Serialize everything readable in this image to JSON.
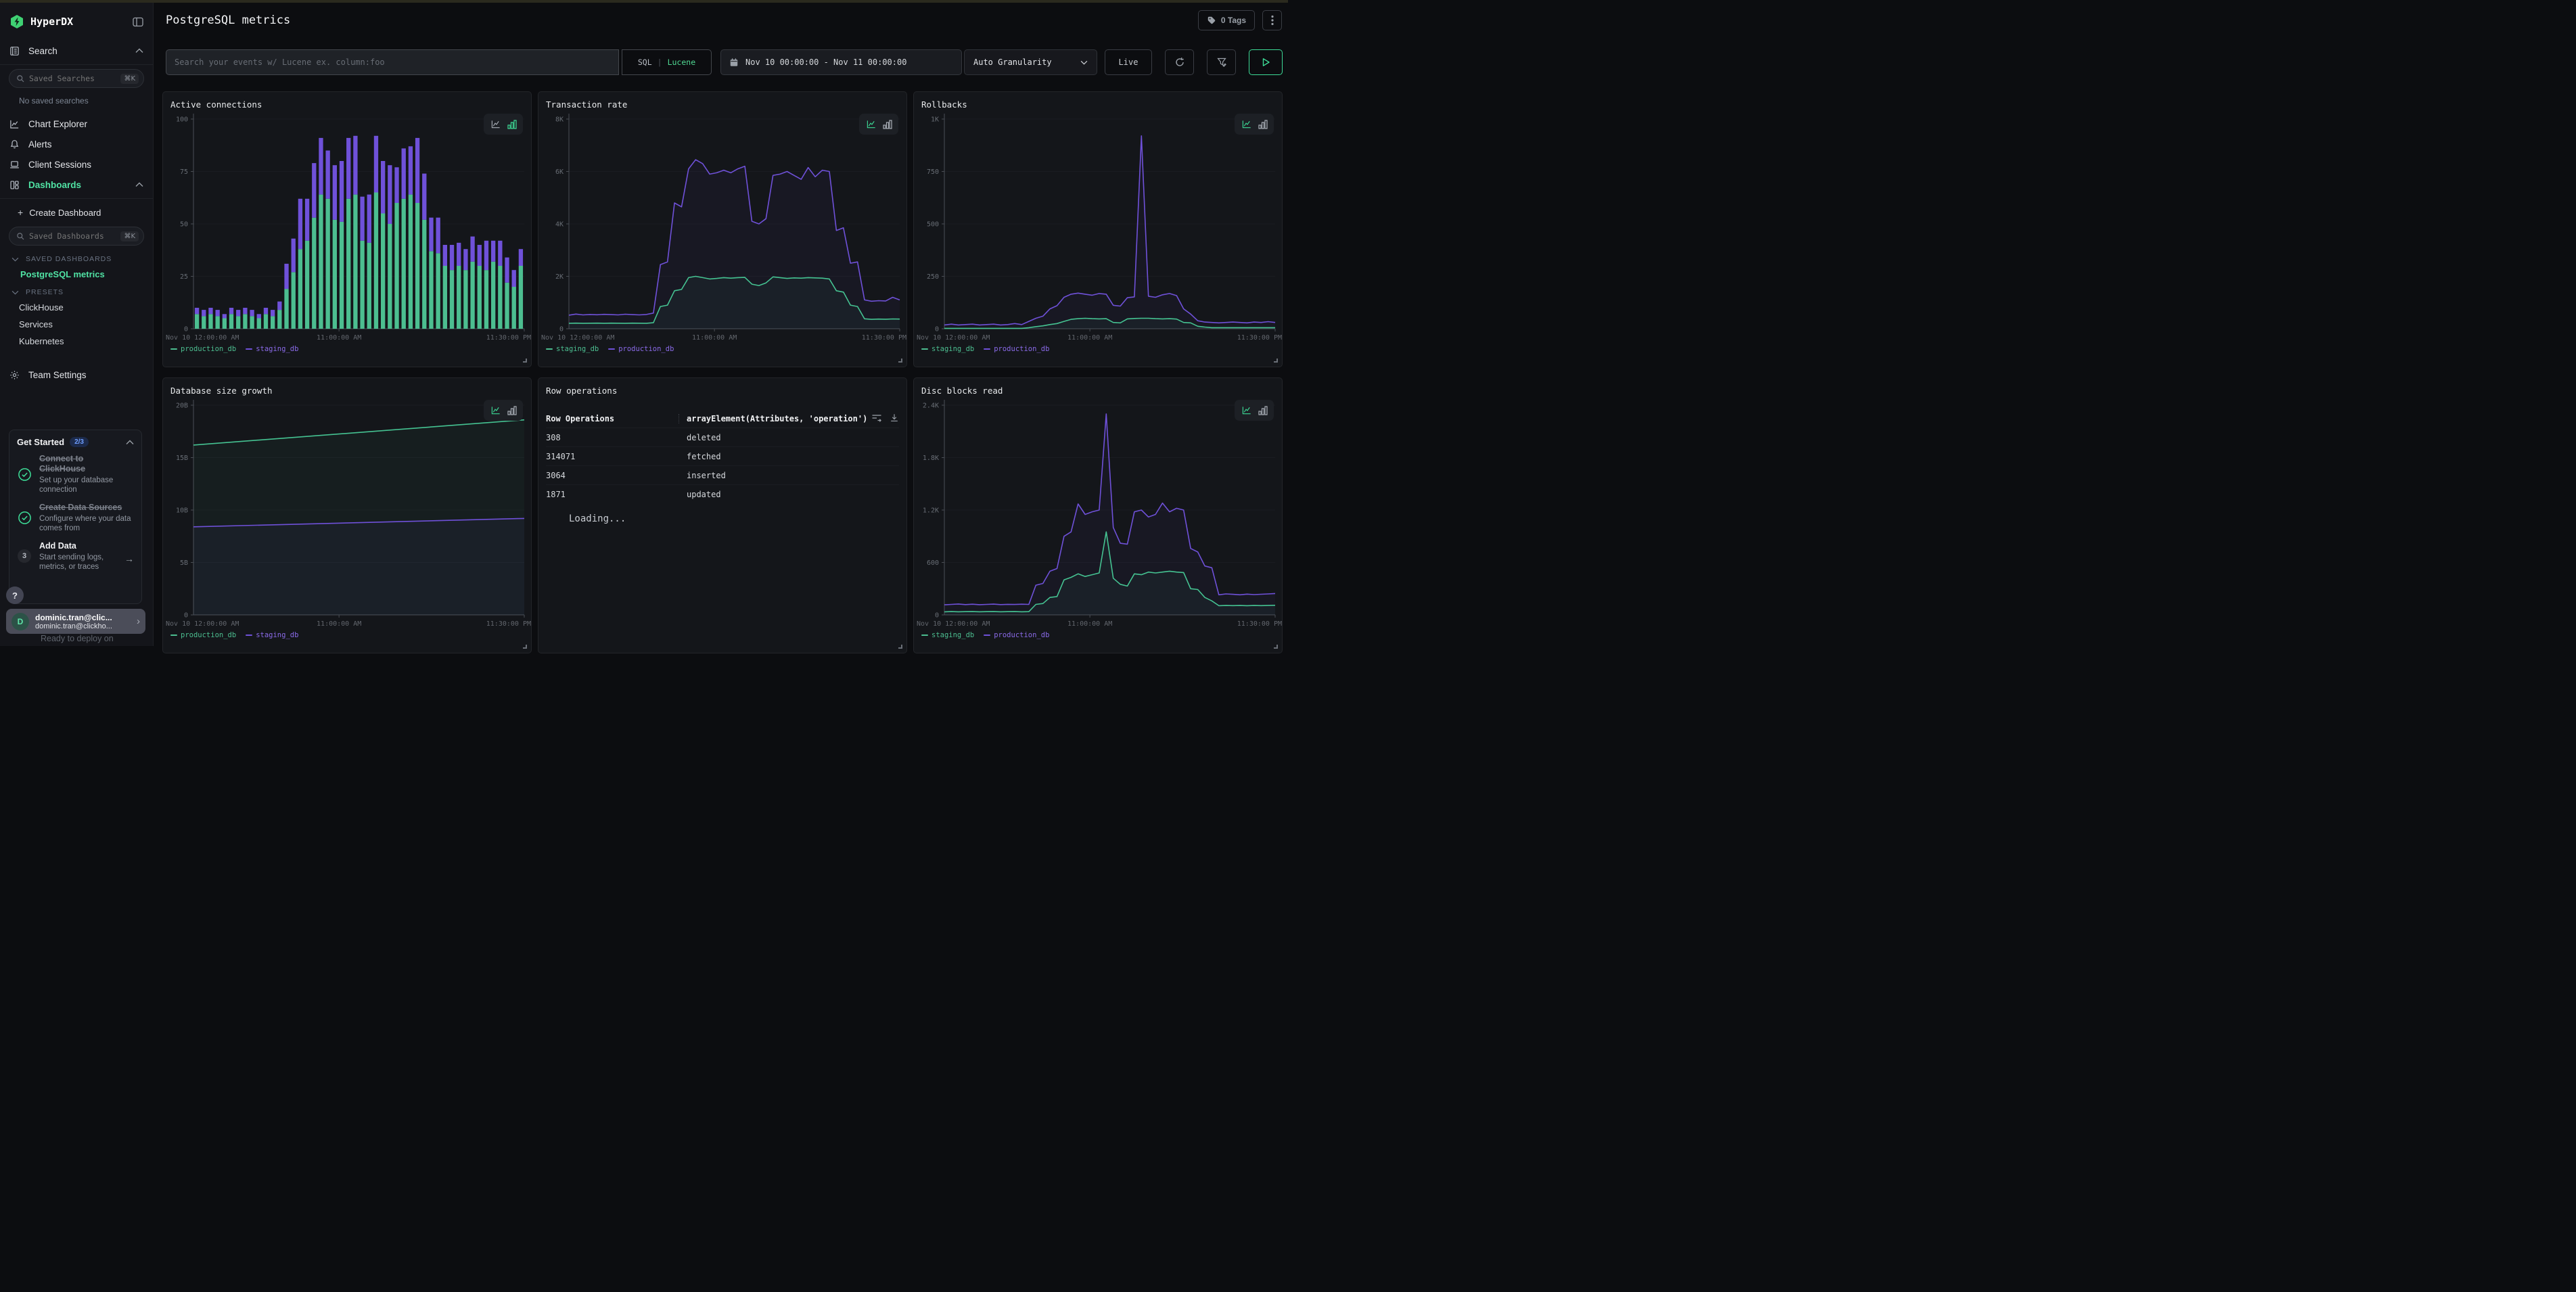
{
  "app": {
    "brand": "HyperDX"
  },
  "sidebar": {
    "search_section_label": "Search",
    "saved_searches": {
      "placeholder": "Saved Searches",
      "shortcut": "⌘K"
    },
    "no_saved_searches": "No saved searches",
    "nav": {
      "chart_explorer": "Chart Explorer",
      "alerts": "Alerts",
      "client_sessions": "Client Sessions",
      "dashboards": "Dashboards"
    },
    "create_dashboard": "Create Dashboard",
    "saved_dashboards_input": {
      "placeholder": "Saved Dashboards",
      "shortcut": "⌘K"
    },
    "saved_dashboards_header": "SAVED DASHBOARDS",
    "saved_dashboard_items": [
      "PostgreSQL metrics"
    ],
    "presets_header": "PRESETS",
    "preset_items": [
      "ClickHouse",
      "Services",
      "Kubernetes"
    ],
    "team_settings": "Team Settings",
    "get_started": {
      "title": "Get Started",
      "badge": "2/3",
      "items": [
        {
          "title": "Connect to ClickHouse",
          "subtitle": "Set up your database connection",
          "done": true
        },
        {
          "title": "Create Data Sources",
          "subtitle": "Configure where your data comes from",
          "done": true
        },
        {
          "step": "3",
          "title": "Add Data",
          "subtitle": "Start sending logs, metrics, or traces",
          "done": false
        }
      ],
      "teaser": "Ready to deploy on"
    },
    "help_label": "?",
    "user": {
      "avatar_initial": "D",
      "name": "dominic.tran@clic...",
      "email": "dominic.tran@clickho..."
    }
  },
  "header": {
    "title": "PostgreSQL metrics",
    "tags_label": "0 Tags"
  },
  "toolbar": {
    "search_placeholder": "Search your events w/ Lucene ex. column:foo",
    "sql_label": "SQL",
    "lucene_label": "Lucene",
    "time_range": "Nov 10 00:00:00 - Nov 11 00:00:00",
    "granularity": "Auto Granularity",
    "live_label": "Live"
  },
  "colors": {
    "accent_green": "#50e3a4",
    "series_green": "#4cbe90",
    "series_purple": "#6f51d9"
  },
  "chart_data": [
    {
      "type": "bar",
      "stacked": true,
      "title": "Active connections",
      "ylim": [
        0,
        100
      ],
      "yticks": [
        "0",
        "25",
        "50",
        "75",
        "100"
      ],
      "xticks": [
        "Nov 10 12:00:00 AM",
        "11:00:00 AM",
        "11:30:00 PM"
      ],
      "legend": [
        {
          "label": "production_db"
        },
        {
          "label": "staging_db"
        }
      ],
      "active_view": "bar",
      "series": [
        {
          "name": "production_db",
          "color": "#4cbe90",
          "values": [
            7,
            6,
            7,
            6,
            5,
            7,
            6,
            7,
            6,
            5,
            7,
            6,
            9,
            19,
            27,
            38,
            42,
            53,
            64,
            62,
            52,
            51,
            62,
            64,
            42,
            41,
            65,
            55,
            50,
            60,
            62,
            64,
            60,
            52,
            37,
            36,
            30,
            28,
            30,
            28,
            32,
            30,
            28,
            32,
            30,
            22,
            20,
            30
          ]
        },
        {
          "name": "staging_db",
          "color": "#6f51d9",
          "values": [
            3,
            3,
            3,
            3,
            2,
            3,
            3,
            3,
            3,
            2,
            3,
            3,
            4,
            12,
            16,
            24,
            20,
            26,
            27,
            23,
            26,
            29,
            29,
            28,
            21,
            23,
            27,
            25,
            28,
            17,
            24,
            23,
            31,
            22,
            16,
            17,
            10,
            12,
            11,
            10,
            12,
            10,
            14,
            10,
            12,
            12,
            8,
            8
          ]
        }
      ]
    },
    {
      "type": "line",
      "title": "Transaction rate",
      "ylim": [
        0,
        8000
      ],
      "yticks": [
        "0",
        "2K",
        "4K",
        "6K",
        "8K"
      ],
      "xticks": [
        "Nov 10 12:00:00 AM",
        "11:00:00 AM",
        "11:30:00 PM"
      ],
      "legend": [
        {
          "label": "staging_db"
        },
        {
          "label": "production_db"
        }
      ],
      "active_view": "line",
      "series": [
        {
          "name": "production_db",
          "color": "#6f51d9",
          "values": [
            520,
            560,
            530,
            545,
            535,
            550,
            540,
            530,
            555,
            540,
            530,
            545,
            600,
            2450,
            2550,
            4800,
            4650,
            6100,
            6450,
            6300,
            5900,
            5950,
            6050,
            5950,
            6100,
            6200,
            4100,
            4000,
            4200,
            5850,
            5900,
            6000,
            5850,
            5700,
            6150,
            5800,
            6050,
            6000,
            3750,
            3850,
            2500,
            2550,
            1100,
            1050,
            1070,
            1060,
            1200,
            1100
          ]
        },
        {
          "name": "staging_db",
          "color": "#45c392",
          "values": [
            210,
            215,
            210,
            212,
            215,
            210,
            214,
            212,
            210,
            215,
            212,
            210,
            230,
            850,
            900,
            1450,
            1500,
            1950,
            2000,
            1950,
            1900,
            1920,
            1950,
            1930,
            1950,
            1960,
            1700,
            1650,
            1750,
            1980,
            1950,
            1920,
            1940,
            1930,
            1950,
            1940,
            1930,
            1900,
            1450,
            1400,
            900,
            850,
            380,
            360,
            370,
            365,
            375,
            370
          ]
        }
      ]
    },
    {
      "type": "line",
      "title": "Rollbacks",
      "ylim": [
        0,
        1000
      ],
      "yticks": [
        "0",
        "250",
        "500",
        "750",
        "1K"
      ],
      "xticks": [
        "Nov 10 12:00:00 AM",
        "11:00:00 AM",
        "11:30:00 PM"
      ],
      "legend": [
        {
          "label": "staging_db"
        },
        {
          "label": "production_db"
        }
      ],
      "active_view": "line",
      "series": [
        {
          "name": "production_db",
          "color": "#6f51d9",
          "values": [
            18,
            22,
            18,
            20,
            22,
            18,
            20,
            22,
            18,
            20,
            25,
            20,
            35,
            50,
            60,
            95,
            110,
            150,
            165,
            170,
            165,
            160,
            168,
            165,
            112,
            108,
            148,
            152,
            920,
            155,
            150,
            162,
            168,
            158,
            95,
            70,
            38,
            32,
            30,
            28,
            30,
            32,
            30,
            28,
            32,
            30,
            34,
            30
          ]
        },
        {
          "name": "staging_db",
          "color": "#45c392",
          "values": [
            2,
            2,
            2,
            2,
            2,
            2,
            2,
            2,
            2,
            2,
            2,
            2,
            5,
            10,
            14,
            20,
            25,
            35,
            45,
            48,
            50,
            48,
            47,
            48,
            30,
            28,
            47,
            49,
            50,
            50,
            48,
            47,
            48,
            46,
            30,
            28,
            12,
            8,
            5,
            5,
            5,
            5,
            5,
            5,
            5,
            5,
            5,
            5
          ]
        }
      ]
    },
    {
      "type": "line",
      "title": "Database size growth",
      "ylim": [
        0,
        20000000000
      ],
      "yticks": [
        "0",
        "5B",
        "10B",
        "15B",
        "20B"
      ],
      "xticks": [
        "Nov 10 12:00:00 AM",
        "11:00:00 AM",
        "11:30:00 PM"
      ],
      "legend": [
        {
          "label": "production_db"
        },
        {
          "label": "staging_db"
        }
      ],
      "active_view": "line",
      "series": [
        {
          "name": "production_db",
          "color": "#45c392",
          "values": [
            16200000000,
            18600000000
          ]
        },
        {
          "name": "staging_db",
          "color": "#6f51d9",
          "values": [
            8400000000,
            9200000000
          ]
        }
      ]
    },
    {
      "type": "table",
      "title": "Row operations",
      "columns": [
        "Row Operations",
        "arrayElement(Attributes, 'operation')"
      ],
      "rows": [
        [
          "308",
          "deleted"
        ],
        [
          "314071",
          "fetched"
        ],
        [
          "3064",
          "inserted"
        ],
        [
          "1871",
          "updated"
        ]
      ],
      "status": "Loading..."
    },
    {
      "type": "line",
      "title": "Disc blocks read",
      "ylim": [
        0,
        2400
      ],
      "yticks": [
        "0",
        "600",
        "1.2K",
        "1.8K",
        "2.4K"
      ],
      "xticks": [
        "Nov 10 12:00:00 AM",
        "11:00:00 AM",
        "11:30:00 PM"
      ],
      "legend": [
        {
          "label": "staging_db"
        },
        {
          "label": "production_db"
        }
      ],
      "active_view": "line",
      "series": [
        {
          "name": "production_db",
          "color": "#6f51d9",
          "values": [
            115,
            120,
            125,
            118,
            122,
            117,
            120,
            123,
            118,
            121,
            119,
            122,
            120,
            340,
            360,
            500,
            530,
            900,
            950,
            1270,
            1150,
            1180,
            1200,
            2300,
            1000,
            820,
            810,
            1180,
            1200,
            1120,
            1150,
            1280,
            1180,
            1220,
            1200,
            760,
            720,
            560,
            540,
            230,
            240,
            235,
            230,
            238,
            232,
            236,
            240,
            245
          ]
        },
        {
          "name": "staging_db",
          "color": "#45c392",
          "values": [
            35,
            38,
            36,
            37,
            38,
            36,
            37,
            38,
            36,
            37,
            38,
            36,
            37,
            120,
            130,
            200,
            210,
            400,
            430,
            470,
            440,
            460,
            480,
            950,
            420,
            350,
            330,
            470,
            460,
            490,
            480,
            490,
            500,
            490,
            485,
            300,
            290,
            200,
            160,
            105,
            108,
            106,
            108,
            105,
            108,
            106,
            108,
            110
          ]
        }
      ]
    }
  ]
}
